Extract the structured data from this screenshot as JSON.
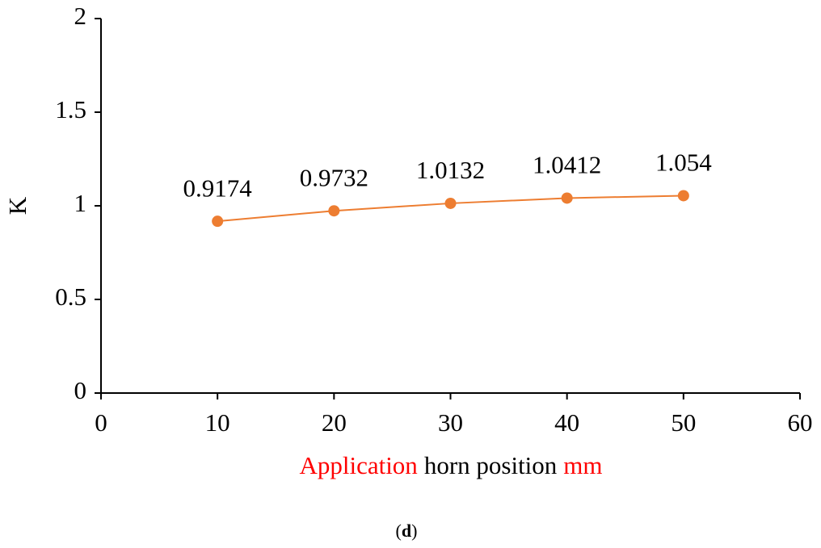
{
  "chart_data": {
    "type": "line",
    "x_label_parts": [
      {
        "text": "Application",
        "color": "#ff0000"
      },
      {
        "text": "horn position",
        "color": "#000000"
      },
      {
        "text": "mm",
        "color": "#ff0000"
      }
    ],
    "y_label": "K",
    "caption_parts": [
      {
        "text": "(",
        "bold": false
      },
      {
        "text": "d",
        "bold": true
      },
      {
        "text": ")",
        "bold": false
      }
    ],
    "x": [
      10,
      20,
      30,
      40,
      50
    ],
    "series": [
      {
        "color": "#ed7d31",
        "values": [
          0.9174,
          0.9732,
          1.0132,
          1.0412,
          1.054
        ]
      }
    ],
    "xlim": [
      0,
      60
    ],
    "xticks": [
      0,
      10,
      20,
      30,
      40,
      50,
      60
    ],
    "ylim": [
      0,
      2
    ],
    "yticks": [
      0,
      0.5,
      1,
      1.5,
      2
    ],
    "grid": false
  }
}
